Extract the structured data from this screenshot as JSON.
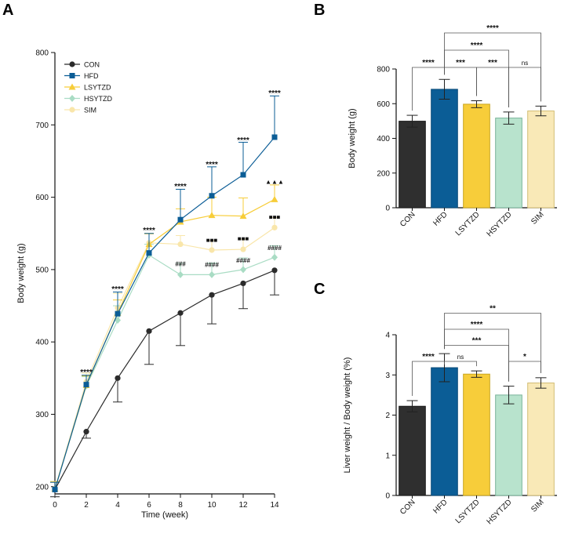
{
  "chart_data": [
    {
      "panel": "A",
      "type": "line",
      "xlabel": "Time (week)",
      "ylabel": "Body weight (g)",
      "xlim": [
        0,
        14
      ],
      "ylim": [
        190,
        800
      ],
      "xticks": [
        0,
        2,
        4,
        6,
        8,
        10,
        12,
        14
      ],
      "yticks": [
        200,
        300,
        400,
        500,
        600,
        700,
        800
      ],
      "legend_position": "top-left",
      "x": [
        0,
        2,
        4,
        6,
        8,
        10,
        12,
        14
      ],
      "series": [
        {
          "name": "CON",
          "color": "#2b2b2b",
          "marker": "circle",
          "values": [
            196,
            276,
            350,
            415,
            440,
            465,
            481,
            499
          ],
          "errors": [
            10,
            9,
            33,
            46,
            45,
            40,
            35,
            34
          ]
        },
        {
          "name": "HFD",
          "color": "#0b5d96",
          "marker": "square",
          "values": [
            196,
            341,
            439,
            523,
            569,
            602,
            631,
            683
          ],
          "errors": [
            10,
            13,
            30,
            27,
            42,
            40,
            45,
            57
          ]
        },
        {
          "name": "LSYTZD",
          "color": "#f7cd3a",
          "marker": "triangle",
          "values": [
            197,
            340,
            440,
            535,
            566,
            575,
            574,
            597
          ],
          "errors": [
            10,
            13,
            18,
            15,
            18,
            25,
            25,
            20
          ]
        },
        {
          "name": "HSYTZD",
          "color": "#a9dcc4",
          "marker": "diamond",
          "values": [
            197,
            339,
            430,
            520,
            493,
            493,
            500,
            517
          ],
          "errors": [
            10,
            13,
            20,
            15,
            16,
            16,
            16,
            16
          ]
        },
        {
          "name": "SIM",
          "color": "#f9e6aa",
          "marker": "circle",
          "values": [
            197,
            345,
            447,
            537,
            535,
            527,
            528,
            558
          ],
          "errors": [
            10,
            12,
            20,
            12,
            12,
            13,
            14,
            14
          ]
        }
      ],
      "annotations": [
        {
          "x": 2,
          "y": 359,
          "text": "****"
        },
        {
          "x": 4,
          "y": 474,
          "text": "****"
        },
        {
          "x": 6,
          "y": 555,
          "text": "****"
        },
        {
          "x": 8,
          "y": 616,
          "text": "****"
        },
        {
          "x": 10,
          "y": 646,
          "text": "****"
        },
        {
          "x": 12,
          "y": 680,
          "text": "****"
        },
        {
          "x": 14,
          "y": 745,
          "text": "****"
        },
        {
          "x": 14,
          "y": 622,
          "text": "▲▲▲"
        },
        {
          "x": 10,
          "y": 541,
          "text": "■■■"
        },
        {
          "x": 12,
          "y": 543,
          "text": "■■■"
        },
        {
          "x": 14,
          "y": 573,
          "text": "■■■"
        },
        {
          "x": 8,
          "y": 508,
          "text": "###"
        },
        {
          "x": 10,
          "y": 507,
          "text": "####"
        },
        {
          "x": 12,
          "y": 513,
          "text": "####"
        },
        {
          "x": 14,
          "y": 530,
          "text": "####"
        }
      ]
    },
    {
      "panel": "B",
      "type": "bar",
      "ylabel": "Body weight (g)",
      "ylim": [
        0,
        800
      ],
      "yticks": [
        0,
        200,
        400,
        600,
        800
      ],
      "categories": [
        "CON",
        "HFD",
        "LSYTZD",
        "HSYTZD",
        "SIM"
      ],
      "values": [
        499,
        683,
        597,
        517,
        558
      ],
      "errors": [
        34,
        57,
        20,
        35,
        28
      ],
      "colors": [
        "#2f2f2f",
        "#0b5d96",
        "#f7cd3a",
        "#b8e3cd",
        "#f9e9b7"
      ],
      "edge_colors": [
        "#1a1a1a",
        "#0a4a78",
        "#c9a51f",
        "#79b399",
        "#d2bd74"
      ],
      "comparisons": [
        {
          "from": 0,
          "to": 1,
          "label": "****",
          "level": 0
        },
        {
          "from": 1,
          "to": 2,
          "label": "***",
          "level": 0
        },
        {
          "from": 2,
          "to": 3,
          "label": "***",
          "level": 0
        },
        {
          "from": 3,
          "to": 4,
          "label": "ns",
          "level": 0
        },
        {
          "from": 1,
          "to": 3,
          "label": "****",
          "level": 1
        },
        {
          "from": 1,
          "to": 4,
          "label": "****",
          "level": 2
        }
      ]
    },
    {
      "panel": "C",
      "type": "bar",
      "ylabel": "Liver weight / Body weight (%)",
      "ylim": [
        0,
        4
      ],
      "yticks": [
        0,
        1,
        2,
        3,
        4
      ],
      "categories": [
        "CON",
        "HFD",
        "LSYTZD",
        "HSYTZD",
        "SIM"
      ],
      "values": [
        2.22,
        3.18,
        3.02,
        2.5,
        2.8
      ],
      "errors": [
        0.14,
        0.35,
        0.08,
        0.22,
        0.13
      ],
      "colors": [
        "#2f2f2f",
        "#0b5d96",
        "#f7cd3a",
        "#b8e3cd",
        "#f9e9b7"
      ],
      "edge_colors": [
        "#1a1a1a",
        "#0a4a78",
        "#c9a51f",
        "#79b399",
        "#d2bd74"
      ],
      "comparisons": [
        {
          "from": 0,
          "to": 1,
          "label": "****",
          "level": 0
        },
        {
          "from": 1,
          "to": 2,
          "label": "ns",
          "level": 0
        },
        {
          "from": 3,
          "to": 4,
          "label": "*",
          "level": 0
        },
        {
          "from": 1,
          "to": 3,
          "label": "***",
          "level": 1
        },
        {
          "from": 1,
          "to": 3,
          "label": "****",
          "level": 2
        },
        {
          "from": 1,
          "to": 4,
          "label": "**",
          "level": 3
        }
      ]
    }
  ]
}
